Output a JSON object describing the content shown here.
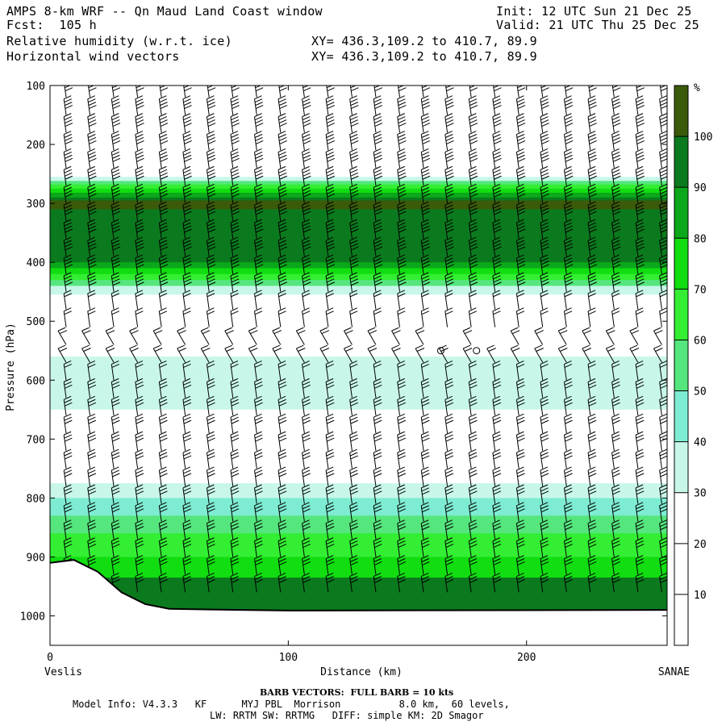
{
  "header": {
    "line1_left": "AMPS 8-km WRF -- Qn Maud Land Coast window",
    "line2_left": "Fcst:  105 h",
    "line1_right": "Init: 12 UTC Sun 21 Dec 25",
    "line2_right": "Valid: 21 UTC Thu 25 Dec 25",
    "field1_name": "Relative humidity (w.r.t. ice)",
    "field1_xy": "XY= 436.3,109.2 to 410.7, 89.9",
    "field2_name": "Horizontal wind vectors",
    "field2_xy": "XY= 436.3,109.2 to 410.7, 89.9"
  },
  "footer": {
    "barb_note": "BARB VECTORS:  FULL BARB = 10 kts",
    "model_line1": "Model Info: V4.3.3   KF      MYJ PBL  Morrison          8.0 km,  60 levels,",
    "model_line2": "LW: RRTM SW: RRTMG   DIFF: simple KM: 2D Smagor"
  },
  "chart_data": {
    "type": "heatmap",
    "title": "Relative humidity (w.r.t. ice)",
    "xlabel": "Distance (km)",
    "ylabel": "Pressure (hPa)",
    "x_start_label": "Veslis",
    "x_end_label": "SANAE",
    "xlim": [
      0,
      259
    ],
    "ylim": [
      1050,
      100
    ],
    "x_ticks": [
      0,
      100,
      200
    ],
    "y_ticks": [
      100,
      200,
      300,
      400,
      500,
      600,
      700,
      800,
      900,
      1000
    ],
    "colorbar": {
      "unit": "%",
      "levels": [
        10,
        20,
        30,
        40,
        50,
        60,
        70,
        80,
        90,
        100
      ],
      "colors": [
        "#ffffff",
        "#ffffff",
        "#ffffff",
        "#c8f7ea",
        "#7eecd2",
        "#55e67e",
        "#33ee33",
        "#11dd11",
        "#0aa81a",
        "#0b7a1e",
        "#3b5a0a"
      ]
    },
    "rh_layers": [
      {
        "name": "upper moist layer",
        "bands": [
          {
            "p_top": 255,
            "p_bot": 455,
            "level": 30
          },
          {
            "p_top": 262,
            "p_bot": 440,
            "level": 50
          },
          {
            "p_top": 268,
            "p_bot": 430,
            "level": 60
          },
          {
            "p_top": 275,
            "p_bot": 420,
            "level": 70
          },
          {
            "p_top": 282,
            "p_bot": 410,
            "level": 80
          },
          {
            "p_top": 290,
            "p_bot": 400,
            "level": 90
          },
          {
            "p_top": 295,
            "p_bot": 310,
            "level": 100
          }
        ]
      },
      {
        "name": "mid-level layer",
        "bands": [
          {
            "p_top": 560,
            "p_bot": 650,
            "level": 30
          }
        ]
      },
      {
        "name": "boundary layer",
        "bands": [
          {
            "p_top": 775,
            "p_bot": 990,
            "level": 30
          },
          {
            "p_top": 800,
            "p_bot": 990,
            "level": 40
          },
          {
            "p_top": 830,
            "p_bot": 990,
            "level": 50
          },
          {
            "p_top": 860,
            "p_bot": 990,
            "level": 60
          },
          {
            "p_top": 900,
            "p_bot": 990,
            "level": 70
          },
          {
            "p_top": 935,
            "p_bot": 990,
            "level": 90
          }
        ]
      }
    ],
    "terrain_hPa": [
      {
        "x": 0,
        "p": 910
      },
      {
        "x": 10,
        "p": 905
      },
      {
        "x": 20,
        "p": 925
      },
      {
        "x": 30,
        "p": 960
      },
      {
        "x": 40,
        "p": 980
      },
      {
        "x": 50,
        "p": 988
      },
      {
        "x": 80,
        "p": 990
      },
      {
        "x": 100,
        "p": 991
      },
      {
        "x": 259,
        "p": 990
      }
    ],
    "calm_points": [
      {
        "x": 164,
        "p": 550
      },
      {
        "x": 179,
        "p": 550
      }
    ],
    "barb_columns_km": [
      0,
      10,
      20,
      30,
      40,
      50,
      60,
      70,
      80,
      90,
      100,
      110,
      120,
      130,
      140,
      150,
      160,
      170,
      180,
      190,
      200,
      210,
      220,
      230,
      240,
      250
    ],
    "barb_levels_hPa": [
      120,
      150,
      180,
      210,
      240,
      270,
      300,
      330,
      360,
      390,
      420,
      450,
      480,
      510,
      540,
      570,
      600,
      630,
      660,
      690,
      720,
      750,
      780,
      810,
      840,
      870,
      900,
      930,
      960
    ]
  }
}
